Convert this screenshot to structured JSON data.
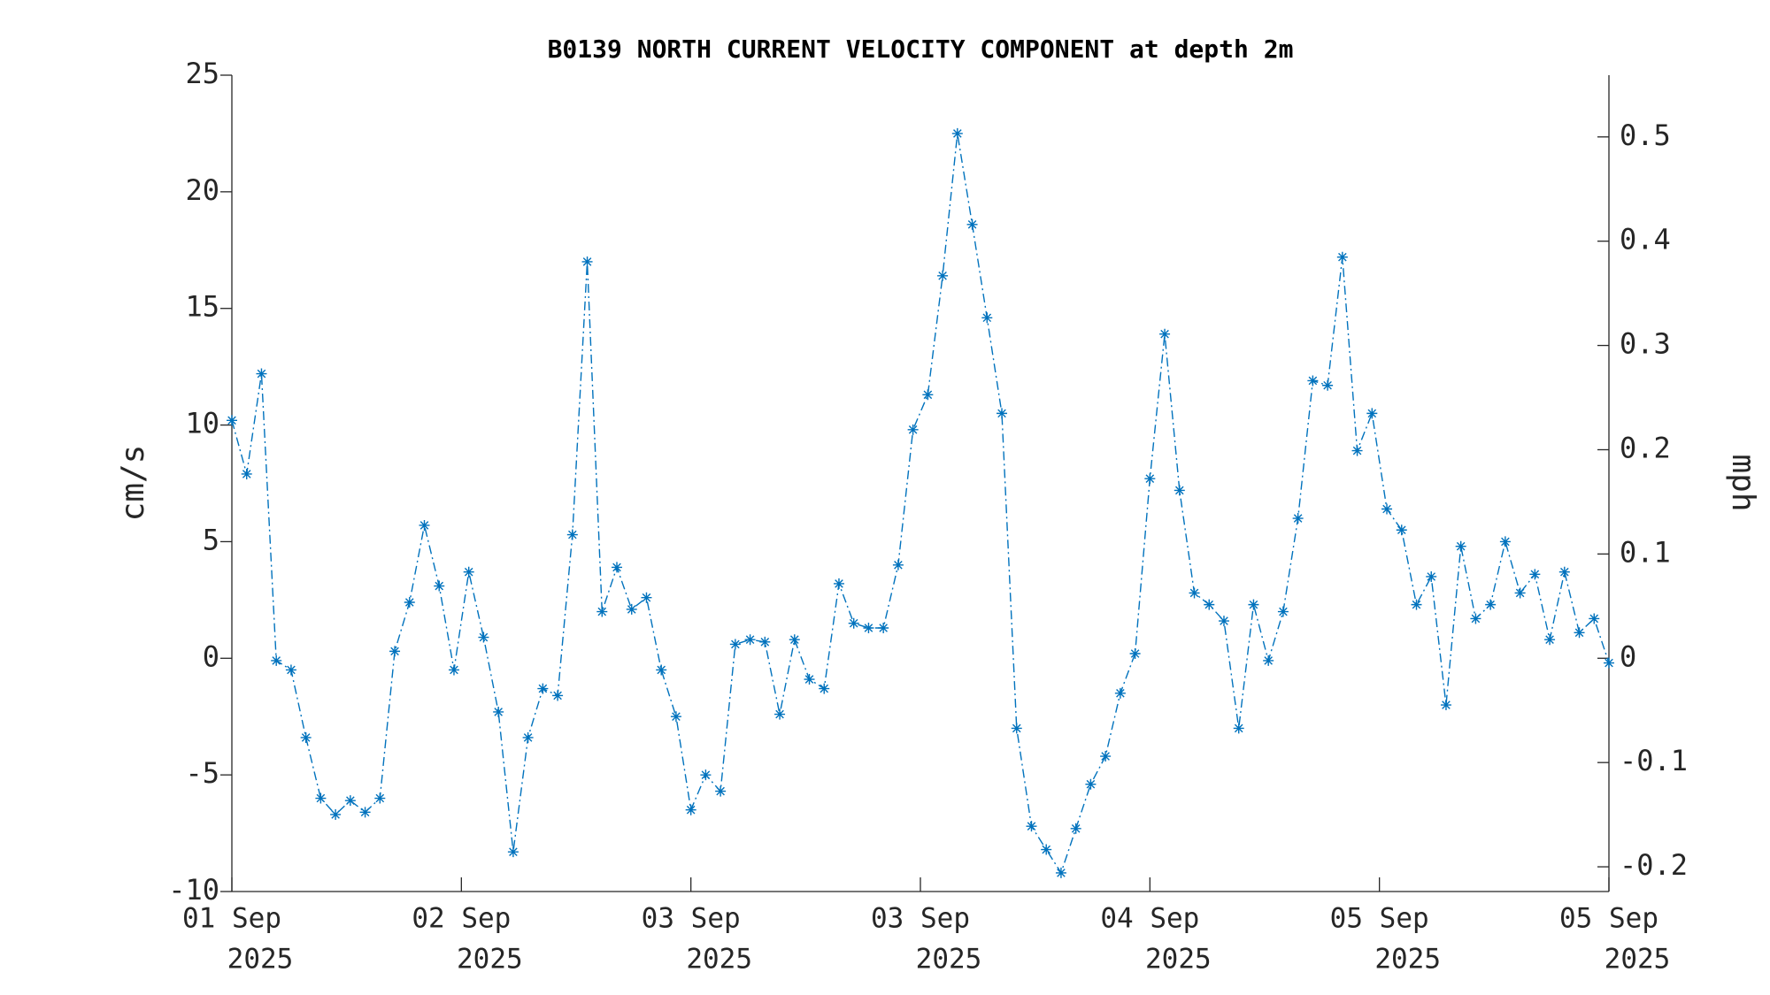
{
  "chart_data": {
    "type": "line",
    "title": "B0139 NORTH CURRENT VELOCITY COMPONENT at depth 2m",
    "ylabel": "cm/s",
    "y2label": "mph",
    "x": [
      0,
      1,
      2,
      3,
      4,
      5,
      6,
      7,
      8,
      9,
      10,
      11,
      12,
      13,
      14,
      15,
      16,
      17,
      18,
      19,
      20,
      21,
      22,
      23,
      24,
      25,
      26,
      27,
      28,
      29,
      30,
      31,
      32,
      33,
      34,
      35,
      36,
      37,
      38,
      39,
      40,
      41,
      42,
      43,
      44,
      45,
      46,
      47,
      48,
      49,
      50,
      51,
      52,
      53,
      54,
      55,
      56,
      57,
      58,
      59,
      60,
      61,
      62,
      63,
      64,
      65,
      66,
      67,
      68,
      69,
      70,
      71,
      72,
      73,
      74,
      75,
      76,
      77,
      78,
      79,
      80,
      81,
      82,
      83,
      84,
      85,
      86,
      87,
      88,
      89,
      90,
      91,
      92,
      93
    ],
    "xlim": [
      0,
      93
    ],
    "xticks": [
      {
        "value": 0,
        "label": [
          "01 Sep",
          "2025"
        ]
      },
      {
        "value": 15.5,
        "label": [
          "02 Sep",
          "2025"
        ]
      },
      {
        "value": 31,
        "label": [
          "03 Sep",
          "2025"
        ]
      },
      {
        "value": 46.5,
        "label": [
          "03 Sep",
          "2025"
        ]
      },
      {
        "value": 62,
        "label": [
          "04 Sep",
          "2025"
        ]
      },
      {
        "value": 77.5,
        "label": [
          "05 Sep",
          "2025"
        ]
      },
      {
        "value": 93,
        "label": [
          "05 Sep",
          "2025"
        ]
      }
    ],
    "ylim": [
      -10,
      25
    ],
    "yticks": [
      -10,
      -5,
      0,
      5,
      10,
      15,
      20,
      25
    ],
    "y2lim": [
      -0.2237,
      0.5592
    ],
    "y2ticks": [
      -0.2,
      -0.1,
      0,
      0.1,
      0.2,
      0.3,
      0.4,
      0.5
    ],
    "series": [
      {
        "color": "#0072bd",
        "values": [
          10.2,
          7.9,
          12.2,
          -0.1,
          -0.5,
          -3.4,
          -6.0,
          -6.7,
          -6.1,
          -6.6,
          -6.0,
          0.3,
          2.4,
          5.7,
          3.1,
          -0.5,
          3.7,
          0.9,
          -2.3,
          -8.3,
          -3.4,
          -1.3,
          -1.6,
          5.3,
          17.0,
          2.0,
          3.9,
          2.1,
          2.6,
          -0.5,
          -2.5,
          -6.5,
          -5.0,
          -5.7,
          0.6,
          0.8,
          0.7,
          -2.4,
          0.8,
          -0.9,
          -1.3,
          3.2,
          1.5,
          1.3,
          1.3,
          4.0,
          9.8,
          11.3,
          16.4,
          22.5,
          18.6,
          14.6,
          10.5,
          -3.0,
          -7.2,
          -8.2,
          -9.2,
          -7.3,
          -5.4,
          -4.2,
          -1.5,
          0.2,
          7.7,
          13.9,
          7.2,
          2.8,
          2.3,
          1.6,
          -3.0,
          2.3,
          -0.1,
          2.0,
          6.0,
          11.9,
          11.7,
          17.2,
          8.9,
          10.5,
          6.4,
          5.5,
          2.3,
          3.5,
          -2.0,
          4.8,
          1.7,
          2.3,
          5.0,
          2.8,
          3.6,
          0.8,
          3.7,
          1.1,
          1.7,
          -0.2
        ]
      }
    ]
  }
}
